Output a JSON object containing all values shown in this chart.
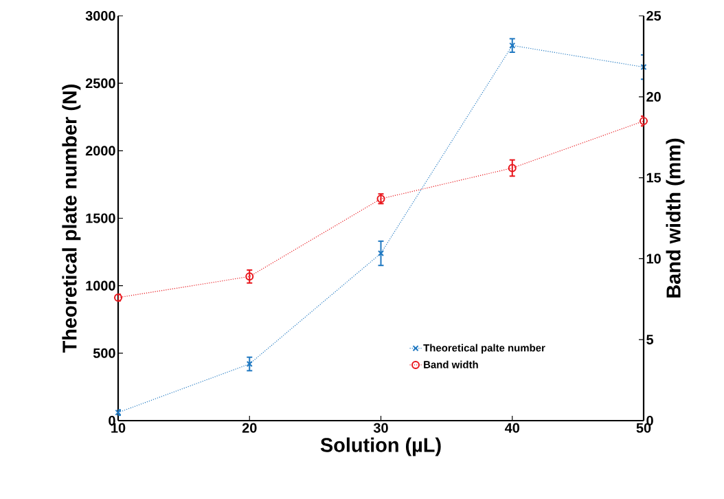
{
  "chart_data": {
    "type": "line",
    "xlabel": "Solution (µL)",
    "ylabel": "Theoretical plate number (N)",
    "y2label": "Band width (mm)",
    "x": [
      10,
      20,
      30,
      40,
      50
    ],
    "series": [
      {
        "name": "Theoretical palte number",
        "color": "#1f78c1",
        "marker": "cross",
        "axis": "y",
        "values": [
          60,
          420,
          1240,
          2780,
          2620
        ],
        "errors": [
          20,
          50,
          90,
          50,
          90
        ]
      },
      {
        "name": "Band width",
        "color": "#e8141a",
        "marker": "circle",
        "axis": "y2",
        "values": [
          7.6,
          8.9,
          13.7,
          15.6,
          18.5
        ],
        "errors": [
          0.2,
          0.4,
          0.3,
          0.5,
          0.3
        ]
      }
    ],
    "xlim": [
      10,
      50
    ],
    "xticks": [
      10,
      20,
      30,
      40,
      50
    ],
    "ylim": [
      0,
      3000
    ],
    "yticks": [
      0,
      500,
      1000,
      1500,
      2000,
      2500,
      3000
    ],
    "y2lim": [
      0,
      25
    ],
    "y2ticks": [
      0,
      5,
      10,
      15,
      20,
      25
    ],
    "line_style": "dotted",
    "grid": false,
    "legend": "bottom right"
  }
}
